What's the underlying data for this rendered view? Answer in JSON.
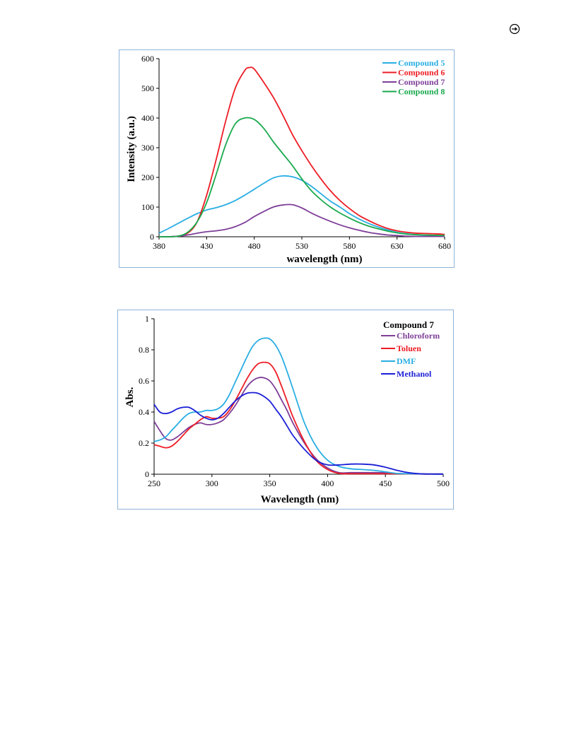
{
  "chart_data": [
    {
      "type": "line",
      "xlabel": "wavelength (nm)",
      "ylabel": "Intensity (a.u.)",
      "xlim": [
        380,
        680
      ],
      "ylim": [
        0,
        600
      ],
      "xticks": [
        "380",
        "430",
        "480",
        "530",
        "580",
        "630",
        "680"
      ],
      "yticks": [
        "0",
        "100",
        "200",
        "300",
        "400",
        "500",
        "600"
      ],
      "grid": false,
      "legend": "top-right",
      "legend_title": "",
      "series": [
        {
          "name": "Compound 5",
          "color": "#29aee3",
          "x": [
            380,
            390,
            400,
            410,
            420,
            430,
            440,
            450,
            460,
            470,
            480,
            490,
            500,
            510,
            520,
            530,
            540,
            550,
            560,
            570,
            580,
            590,
            600,
            610,
            620,
            630,
            640,
            650,
            660,
            670,
            680
          ],
          "y": [
            12,
            28,
            45,
            62,
            78,
            90,
            98,
            108,
            122,
            140,
            160,
            180,
            198,
            205,
            202,
            190,
            170,
            145,
            120,
            100,
            78,
            60,
            45,
            33,
            23,
            15,
            10,
            7,
            5,
            4,
            3
          ]
        },
        {
          "name": "Compound 6",
          "color": "#ed1c24",
          "x": [
            380,
            390,
            400,
            410,
            420,
            430,
            440,
            450,
            460,
            470,
            475,
            480,
            490,
            500,
            510,
            520,
            530,
            540,
            550,
            560,
            570,
            580,
            590,
            600,
            610,
            620,
            630,
            640,
            650,
            660,
            670,
            680
          ],
          "y": [
            0,
            0,
            2,
            12,
            50,
            140,
            260,
            390,
            500,
            560,
            570,
            565,
            520,
            470,
            410,
            345,
            290,
            240,
            195,
            155,
            122,
            95,
            72,
            55,
            40,
            28,
            20,
            15,
            12,
            11,
            10,
            8
          ]
        },
        {
          "name": "Compound 7",
          "color": "#7e3f98",
          "x": [
            380,
            390,
            400,
            410,
            420,
            430,
            440,
            450,
            460,
            470,
            480,
            490,
            500,
            510,
            520,
            530,
            540,
            550,
            560,
            570,
            580,
            590,
            600,
            610,
            620,
            630,
            640,
            650,
            660,
            670,
            680
          ],
          "y": [
            0,
            0,
            2,
            6,
            12,
            17,
            20,
            25,
            34,
            48,
            68,
            85,
            100,
            107,
            108,
            97,
            80,
            65,
            52,
            40,
            30,
            22,
            15,
            10,
            6,
            4,
            2,
            1,
            1,
            1,
            1
          ]
        },
        {
          "name": "Compound 8",
          "color": "#1aa94d",
          "x": [
            380,
            390,
            400,
            410,
            420,
            430,
            440,
            450,
            460,
            470,
            480,
            490,
            500,
            510,
            520,
            530,
            540,
            550,
            560,
            570,
            580,
            590,
            600,
            610,
            620,
            630,
            640,
            650,
            660,
            670,
            680
          ],
          "y": [
            0,
            0,
            2,
            15,
            50,
            115,
            210,
            310,
            380,
            400,
            395,
            365,
            320,
            280,
            240,
            195,
            155,
            125,
            100,
            80,
            63,
            48,
            36,
            27,
            19,
            13,
            9,
            7,
            6,
            5,
            4
          ]
        }
      ]
    },
    {
      "type": "line",
      "xlabel": "Wavelength (nm)",
      "ylabel": "Abs.",
      "xlim": [
        250,
        500
      ],
      "ylim": [
        0,
        1
      ],
      "xticks": [
        "250",
        "300",
        "350",
        "400",
        "450",
        "500"
      ],
      "yticks": [
        "0",
        "0.2",
        "0.4",
        "0.6",
        "0.8",
        "1"
      ],
      "grid": false,
      "legend": "top-right",
      "legend_title": "Compound 7",
      "series": [
        {
          "name": "Chloroform",
          "color": "#7e3f98",
          "x": [
            250,
            255,
            260,
            265,
            270,
            275,
            280,
            285,
            290,
            295,
            300,
            305,
            310,
            315,
            320,
            325,
            330,
            335,
            340,
            345,
            350,
            355,
            360,
            365,
            370,
            380,
            390,
            400,
            410,
            420,
            430,
            440,
            450,
            460,
            470,
            480,
            490,
            500
          ],
          "y": [
            0.34,
            0.28,
            0.23,
            0.22,
            0.24,
            0.27,
            0.3,
            0.32,
            0.33,
            0.32,
            0.32,
            0.33,
            0.35,
            0.39,
            0.44,
            0.5,
            0.56,
            0.6,
            0.62,
            0.62,
            0.6,
            0.55,
            0.48,
            0.41,
            0.33,
            0.2,
            0.1,
            0.04,
            0.01,
            0.01,
            0.01,
            0.01,
            0.01,
            0.005,
            0.003,
            0.002,
            0.001,
            0.001
          ]
        },
        {
          "name": "Toluen",
          "color": "#ed1c24",
          "x": [
            250,
            255,
            260,
            265,
            270,
            275,
            280,
            285,
            290,
            295,
            300,
            305,
            310,
            315,
            320,
            325,
            330,
            335,
            340,
            345,
            350,
            355,
            360,
            365,
            370,
            380,
            390,
            400,
            410,
            420,
            430,
            440,
            450,
            460,
            470,
            480,
            490,
            500
          ],
          "y": [
            0.19,
            0.18,
            0.17,
            0.18,
            0.21,
            0.25,
            0.29,
            0.32,
            0.35,
            0.37,
            0.36,
            0.36,
            0.37,
            0.41,
            0.47,
            0.54,
            0.61,
            0.67,
            0.71,
            0.72,
            0.71,
            0.66,
            0.57,
            0.47,
            0.37,
            0.21,
            0.09,
            0.03,
            0.005,
            0.003,
            0.003,
            0.003,
            0.003,
            0.003,
            0.002,
            0.001,
            0.001,
            0.001
          ]
        },
        {
          "name": "DMF",
          "color": "#29aee3",
          "x": [
            250,
            255,
            260,
            265,
            270,
            275,
            280,
            285,
            290,
            295,
            300,
            305,
            310,
            315,
            320,
            325,
            330,
            335,
            340,
            345,
            350,
            355,
            360,
            365,
            370,
            380,
            390,
            400,
            410,
            420,
            430,
            440,
            450,
            460,
            470,
            480,
            490,
            500
          ],
          "y": [
            0.21,
            0.22,
            0.24,
            0.28,
            0.32,
            0.36,
            0.39,
            0.4,
            0.4,
            0.41,
            0.41,
            0.42,
            0.45,
            0.51,
            0.59,
            0.67,
            0.75,
            0.82,
            0.86,
            0.875,
            0.87,
            0.83,
            0.76,
            0.66,
            0.55,
            0.33,
            0.18,
            0.09,
            0.05,
            0.035,
            0.03,
            0.025,
            0.015,
            0.005,
            0.003,
            0.002,
            0.001,
            0.001
          ]
        },
        {
          "name": "Methanol",
          "color": "#1b1fd6",
          "x": [
            250,
            255,
            260,
            265,
            270,
            275,
            280,
            285,
            290,
            295,
            300,
            305,
            310,
            315,
            320,
            325,
            330,
            335,
            340,
            345,
            350,
            355,
            360,
            365,
            370,
            380,
            390,
            400,
            410,
            420,
            430,
            440,
            450,
            460,
            470,
            480,
            490,
            500
          ],
          "y": [
            0.45,
            0.4,
            0.39,
            0.4,
            0.42,
            0.43,
            0.43,
            0.41,
            0.38,
            0.36,
            0.35,
            0.36,
            0.39,
            0.43,
            0.47,
            0.5,
            0.52,
            0.525,
            0.52,
            0.5,
            0.47,
            0.42,
            0.37,
            0.31,
            0.25,
            0.16,
            0.09,
            0.06,
            0.06,
            0.065,
            0.065,
            0.06,
            0.045,
            0.025,
            0.01,
            0.003,
            0.001,
            0.001
          ]
        }
      ]
    }
  ]
}
